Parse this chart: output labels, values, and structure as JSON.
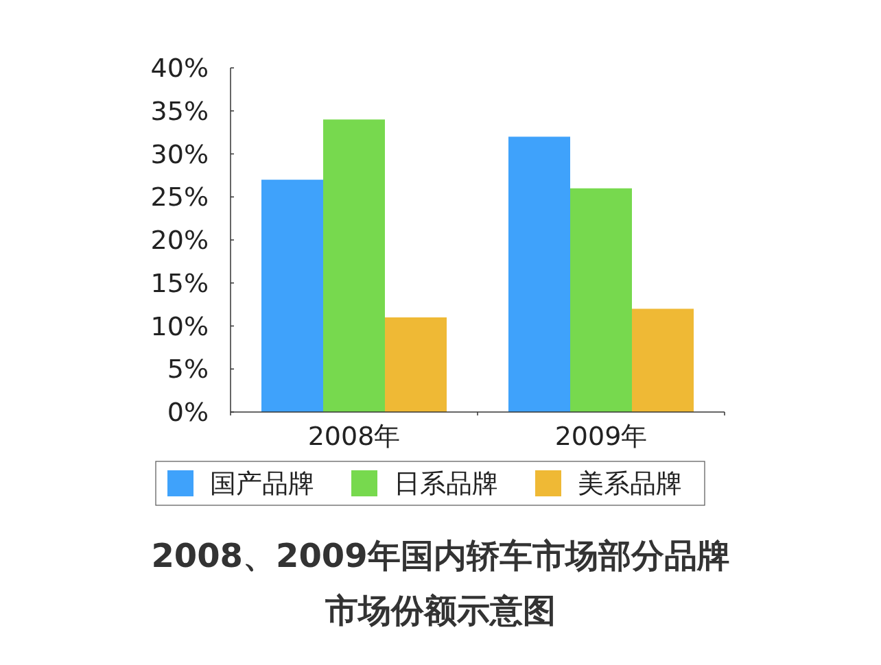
{
  "chart_data": {
    "type": "bar",
    "title": "2008、2009年国内轿车市场部分品牌市场份额示意图",
    "categories": [
      "2008年",
      "2009年"
    ],
    "series": [
      {
        "name": "国产品牌",
        "color": "#3fa2fb",
        "values": [
          27,
          32
        ]
      },
      {
        "name": "日系品牌",
        "color": "#77d94e",
        "values": [
          34,
          26
        ]
      },
      {
        "name": "美系品牌",
        "color": "#efb935",
        "values": [
          11,
          12
        ]
      }
    ],
    "ylim": [
      0,
      40
    ],
    "yticks": [
      {
        "value": 0,
        "label": "0%"
      },
      {
        "value": 5,
        "label": "5%"
      },
      {
        "value": 10,
        "label": "10%"
      },
      {
        "value": 15,
        "label": "15%"
      },
      {
        "value": 20,
        "label": "20%"
      },
      {
        "value": 25,
        "label": "25%"
      },
      {
        "value": 30,
        "label": "30%"
      },
      {
        "value": 35,
        "label": "35%"
      },
      {
        "value": 40,
        "label": "40%"
      }
    ],
    "grid": false,
    "legend": "bottom"
  }
}
